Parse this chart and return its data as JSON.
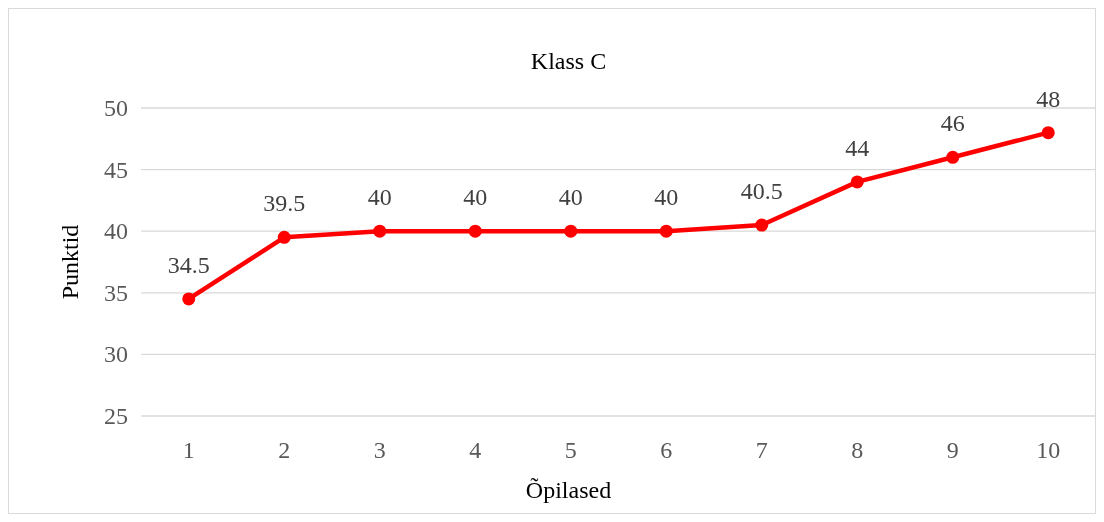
{
  "chart_data": {
    "type": "line",
    "title": "Klass C",
    "xlabel": "Õpilased",
    "ylabel": "Punktid",
    "categories": [
      "1",
      "2",
      "3",
      "4",
      "5",
      "6",
      "7",
      "8",
      "9",
      "10"
    ],
    "series": [
      {
        "color": "#ff0000",
        "values": [
          34.5,
          39.5,
          40,
          40,
          40,
          40,
          40.5,
          44,
          46,
          48
        ]
      }
    ],
    "ylim": [
      25,
      50
    ],
    "yticks": [
      25,
      30,
      35,
      40,
      45,
      50
    ],
    "grid": "y",
    "data_labels": true,
    "marker": "circle",
    "line_style": "solid"
  }
}
